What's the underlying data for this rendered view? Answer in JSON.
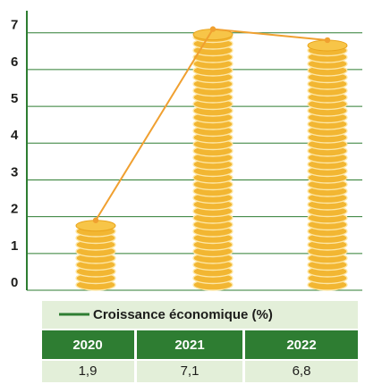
{
  "chart_data": {
    "type": "bar",
    "categories": [
      "2020",
      "2021",
      "2022"
    ],
    "series": [
      {
        "name": "Croissance économique (%)",
        "color": "#f0a030",
        "values": [
          1.9,
          7.1,
          6.8
        ],
        "value_labels": [
          "1,9",
          "7,1",
          "6,8"
        ]
      }
    ],
    "legend_color": "#2e7d32",
    "coin_color": "#f2b632",
    "axis_color": "#2e7d32",
    "ylim": [
      0,
      7.6
    ],
    "yticks": [
      0,
      1,
      2,
      3,
      4,
      5,
      6,
      7
    ],
    "grid": true
  }
}
